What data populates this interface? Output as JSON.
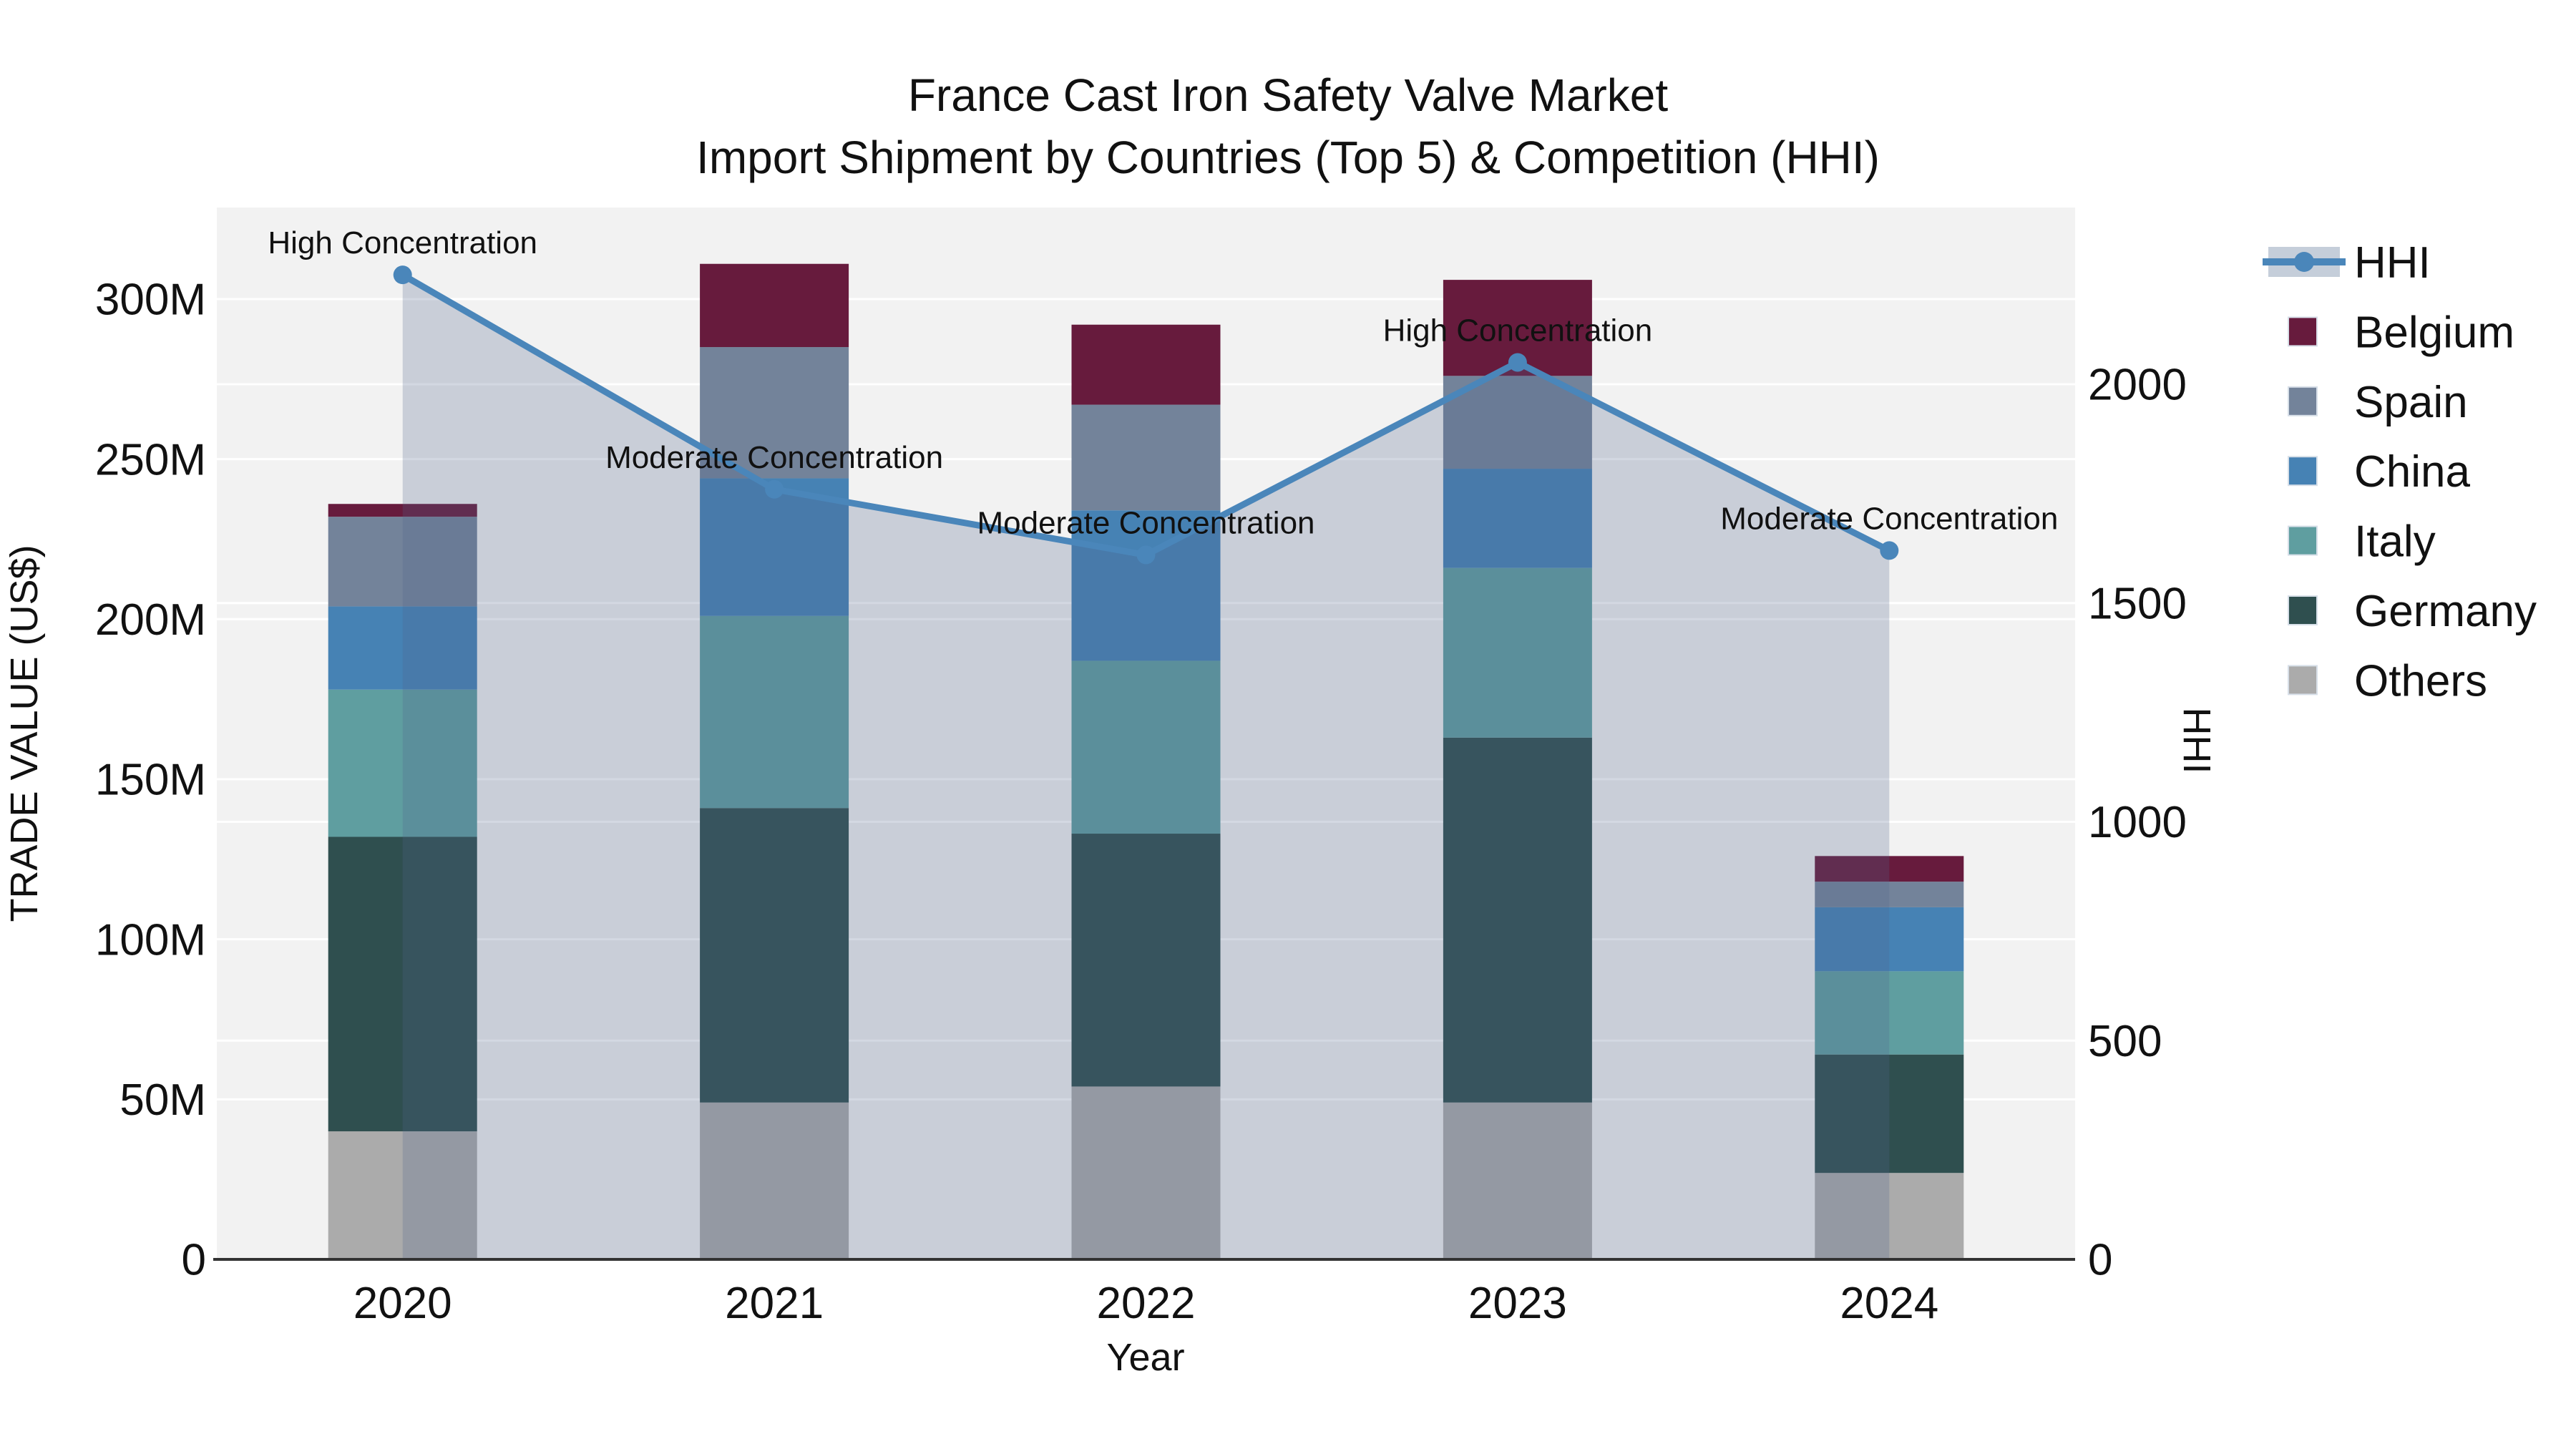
{
  "title": {
    "line1": "France Cast Iron Safety Valve Market",
    "line2": "Import Shipment by Countries (Top 5) & Competition (HHI)"
  },
  "colors": {
    "plot_bg": "#F2F2F2",
    "page_bg": "#FFFFFF",
    "axis_line": "#333333",
    "gridline": "#FFFFFF",
    "hhi_line": "#4A86BA",
    "hhi_area_fill": "rgba(78,98,138,0.25)",
    "legend_hhi_band": "#C5CEDA",
    "swatch_border": "#D7DFE8",
    "text": "#111111"
  },
  "legend": {
    "items": [
      {
        "label": "HHI",
        "type": "line",
        "color": "#4A86BA"
      },
      {
        "label": "Belgium",
        "type": "swatch",
        "color": "#671B3D"
      },
      {
        "label": "Spain",
        "type": "swatch",
        "color": "#73839A"
      },
      {
        "label": "China",
        "type": "swatch",
        "color": "#4682B4"
      },
      {
        "label": "Italy",
        "type": "swatch",
        "color": "#5F9EA0"
      },
      {
        "label": "Germany",
        "type": "swatch",
        "color": "#2F4F4F"
      },
      {
        "label": "Others",
        "type": "swatch",
        "color": "#ABABAB"
      }
    ]
  },
  "chart_data": {
    "type": "combo-stacked-bar-line",
    "categories": [
      "2020",
      "2021",
      "2022",
      "2023",
      "2024"
    ],
    "xlabel": "Year",
    "series": [
      {
        "name": "Others",
        "color": "#ABABAB",
        "values": [
          40,
          49,
          54,
          49,
          27
        ]
      },
      {
        "name": "Germany",
        "color": "#2F4F4F",
        "values": [
          92,
          92,
          79,
          114,
          37
        ]
      },
      {
        "name": "Italy",
        "color": "#5F9EA0",
        "values": [
          46,
          60,
          54,
          53,
          26
        ]
      },
      {
        "name": "China",
        "color": "#4682B4",
        "values": [
          26,
          43,
          47,
          31,
          20
        ]
      },
      {
        "name": "Spain",
        "color": "#73839A",
        "values": [
          28,
          41,
          33,
          29,
          8
        ]
      },
      {
        "name": "Belgium",
        "color": "#671B3D",
        "values": [
          4,
          26,
          25,
          30,
          8
        ]
      }
    ],
    "bar_totals": [
      236,
      311,
      292,
      306,
      126
    ],
    "hhi": {
      "name": "HHI",
      "values": [
        2250,
        1760,
        1610,
        2050,
        1620
      ],
      "annotations": [
        "High Concentration",
        "Moderate Concentration",
        "Moderate Concentration",
        "High Concentration",
        "Moderate Concentration"
      ]
    },
    "left_axis": {
      "title": "TRADE VALUE (US$)",
      "ticks": [
        0,
        50,
        100,
        150,
        200,
        250,
        300
      ],
      "tick_labels": [
        "0",
        "50M",
        "100M",
        "150M",
        "200M",
        "250M",
        "300M"
      ],
      "range": [
        0,
        328.6
      ]
    },
    "right_axis": {
      "title": "HHI",
      "ticks": [
        0,
        500,
        1000,
        1500,
        2000
      ],
      "tick_labels": [
        "0",
        "500",
        "1000",
        "1500",
        "2000"
      ],
      "range": [
        0,
        2404
      ]
    },
    "grid": true,
    "legend_position": "right-top"
  }
}
